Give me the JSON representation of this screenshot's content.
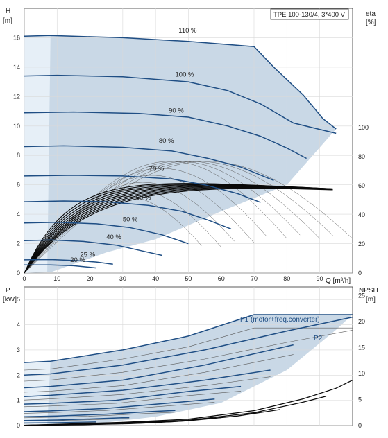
{
  "colors": {
    "region_fill": "#c9d8e6",
    "region_light": "#e6eff7",
    "curve_blue": "#1f4e84",
    "curve_dark": "#0a0a0a",
    "thin_line": "#5a5a5a",
    "grid": "#d9d9d9",
    "axis": "#333333"
  },
  "chart_data": [
    {
      "type": "line",
      "title": "TPE 100-130/4, 3*400 V",
      "ylabel": "H",
      "yunit": "[m]",
      "y2label": "eta",
      "y2unit": "[%]",
      "xlabel": "Q [m³/h]",
      "xlim": [
        0,
        100
      ],
      "ylim": [
        0,
        18
      ],
      "xticks": [
        0,
        10,
        20,
        30,
        40,
        50,
        60,
        70,
        80,
        90
      ],
      "yticks": [
        0,
        2,
        4,
        6,
        8,
        10,
        12,
        14,
        16
      ],
      "y2ticks": [
        0,
        20,
        40,
        60,
        80,
        100
      ],
      "grid": true,
      "speed_curves": [
        {
          "label": "110 %",
          "label_at": [
            47,
            16.35
          ],
          "points": [
            [
              0,
              16.1
            ],
            [
              8,
              16.15
            ],
            [
              30,
              16.0
            ],
            [
              50,
              15.75
            ],
            [
              70,
              15.4
            ],
            [
              76,
              14.0
            ],
            [
              85,
              12.1
            ],
            [
              91,
              10.5
            ],
            [
              95,
              9.8
            ]
          ]
        },
        {
          "label": "100 %",
          "label_at": [
            46,
            13.35
          ],
          "points": [
            [
              0,
              13.4
            ],
            [
              10,
              13.45
            ],
            [
              30,
              13.35
            ],
            [
              50,
              13.0
            ],
            [
              62,
              12.4
            ],
            [
              72,
              11.5
            ],
            [
              82,
              10.2
            ],
            [
              95,
              9.5
            ]
          ]
        },
        {
          "label": "90 %",
          "label_at": [
            44,
            10.9
          ],
          "points": [
            [
              0,
              10.9
            ],
            [
              15,
              10.95
            ],
            [
              35,
              10.85
            ],
            [
              50,
              10.6
            ],
            [
              62,
              10.0
            ],
            [
              72,
              9.3
            ],
            [
              80,
              8.5
            ],
            [
              86,
              7.8
            ]
          ]
        },
        {
          "label": "80 %",
          "label_at": [
            41,
            8.85
          ],
          "points": [
            [
              0,
              8.6
            ],
            [
              12,
              8.65
            ],
            [
              30,
              8.55
            ],
            [
              45,
              8.3
            ],
            [
              56,
              7.8
            ],
            [
              66,
              7.2
            ],
            [
              76,
              6.3
            ]
          ]
        },
        {
          "label": "70 %",
          "label_at": [
            38,
            6.95
          ],
          "points": [
            [
              0,
              6.6
            ],
            [
              15,
              6.65
            ],
            [
              30,
              6.6
            ],
            [
              45,
              6.4
            ],
            [
              55,
              6.0
            ],
            [
              65,
              5.4
            ],
            [
              72,
              4.8
            ]
          ]
        },
        {
          "label": "60 %",
          "label_at": [
            34,
            5.0
          ],
          "points": [
            [
              0,
              4.85
            ],
            [
              12,
              4.9
            ],
            [
              25,
              4.85
            ],
            [
              38,
              4.6
            ],
            [
              48,
              4.2
            ],
            [
              56,
              3.6
            ],
            [
              63,
              3.0
            ]
          ]
        },
        {
          "label": "50 %",
          "label_at": [
            30,
            3.5
          ],
          "points": [
            [
              0,
              3.4
            ],
            [
              10,
              3.45
            ],
            [
              22,
              3.35
            ],
            [
              32,
              3.1
            ],
            [
              42,
              2.6
            ],
            [
              50,
              2.0
            ]
          ]
        },
        {
          "label": "40 %",
          "label_at": [
            25,
            2.3
          ],
          "points": [
            [
              0,
              2.2
            ],
            [
              8,
              2.25
            ],
            [
              18,
              2.15
            ],
            [
              28,
              1.9
            ],
            [
              36,
              1.5
            ],
            [
              42,
              1.2
            ]
          ]
        },
        {
          "label": "25 %",
          "label_at": [
            17,
            1.1
          ],
          "points": [
            [
              0,
              0.9
            ],
            [
              8,
              0.92
            ],
            [
              16,
              0.85
            ],
            [
              22,
              0.75
            ],
            [
              27,
              0.6
            ]
          ]
        },
        {
          "label": "20 %",
          "label_at": [
            14,
            0.75
          ],
          "points": [
            [
              0,
              0.55
            ],
            [
              8,
              0.55
            ],
            [
              15,
              0.5
            ],
            [
              22,
              0.35
            ]
          ]
        }
      ]
    },
    {
      "type": "line",
      "title": "",
      "ylabel": "P",
      "yunit": "[kW]",
      "y2label": "NPSH",
      "y2unit": "[m]",
      "xlim": [
        0,
        100
      ],
      "ylim": [
        0,
        5.5
      ],
      "yticks": [
        0,
        1,
        2,
        3,
        4,
        5
      ],
      "y2ticks": [
        0,
        5,
        10,
        15,
        20,
        25
      ],
      "grid": true,
      "annotations": [
        "P1 (motor+freq.converter)",
        "P2"
      ],
      "p1_curves": [
        [
          [
            0,
            2.5
          ],
          [
            8,
            2.55
          ],
          [
            30,
            3.0
          ],
          [
            50,
            3.55
          ],
          [
            70,
            4.4
          ],
          [
            100,
            4.4
          ]
        ],
        [
          [
            0,
            2.0
          ],
          [
            8,
            2.05
          ],
          [
            30,
            2.4
          ],
          [
            55,
            3.0
          ],
          [
            80,
            3.75
          ],
          [
            100,
            4.3
          ]
        ],
        [
          [
            0,
            1.5
          ],
          [
            8,
            1.55
          ],
          [
            30,
            1.8
          ],
          [
            55,
            2.4
          ],
          [
            82,
            3.2
          ]
        ],
        [
          [
            0,
            1.15
          ],
          [
            8,
            1.2
          ],
          [
            30,
            1.4
          ],
          [
            55,
            1.8
          ],
          [
            75,
            2.2
          ]
        ],
        [
          [
            0,
            0.85
          ],
          [
            8,
            0.88
          ],
          [
            28,
            1.0
          ],
          [
            50,
            1.35
          ],
          [
            66,
            1.55
          ]
        ],
        [
          [
            0,
            0.55
          ],
          [
            8,
            0.58
          ],
          [
            25,
            0.68
          ],
          [
            45,
            0.9
          ],
          [
            58,
            1.05
          ]
        ],
        [
          [
            0,
            0.35
          ],
          [
            10,
            0.38
          ],
          [
            25,
            0.45
          ],
          [
            38,
            0.55
          ],
          [
            46,
            0.6
          ]
        ],
        [
          [
            0,
            0.2
          ],
          [
            10,
            0.22
          ],
          [
            20,
            0.26
          ],
          [
            32,
            0.32
          ]
        ],
        [
          [
            0,
            0.1
          ],
          [
            10,
            0.11
          ],
          [
            22,
            0.14
          ]
        ]
      ],
      "npsh_curves": [
        [
          [
            0,
            0.05
          ],
          [
            30,
            0.6
          ],
          [
            50,
            1.2
          ],
          [
            70,
            2.8
          ],
          [
            85,
            5.0
          ],
          [
            95,
            7.0
          ],
          [
            100,
            8.5
          ]
        ],
        [
          [
            0,
            0.04
          ],
          [
            30,
            0.5
          ],
          [
            50,
            1.0
          ],
          [
            70,
            2.4
          ],
          [
            85,
            4.4
          ],
          [
            92,
            5.5
          ]
        ],
        [
          [
            0,
            0.03
          ],
          [
            30,
            0.4
          ],
          [
            50,
            0.9
          ],
          [
            65,
            1.8
          ],
          [
            78,
            3.0
          ]
        ],
        [
          [
            0,
            0.02
          ],
          [
            25,
            0.3
          ],
          [
            45,
            0.7
          ],
          [
            60,
            1.5
          ]
        ],
        [
          [
            0,
            0.01
          ],
          [
            20,
            0.2
          ],
          [
            38,
            0.5
          ],
          [
            50,
            0.9
          ]
        ],
        [
          [
            0,
            0.01
          ],
          [
            18,
            0.15
          ],
          [
            32,
            0.35
          ],
          [
            42,
            0.6
          ]
        ]
      ]
    }
  ]
}
